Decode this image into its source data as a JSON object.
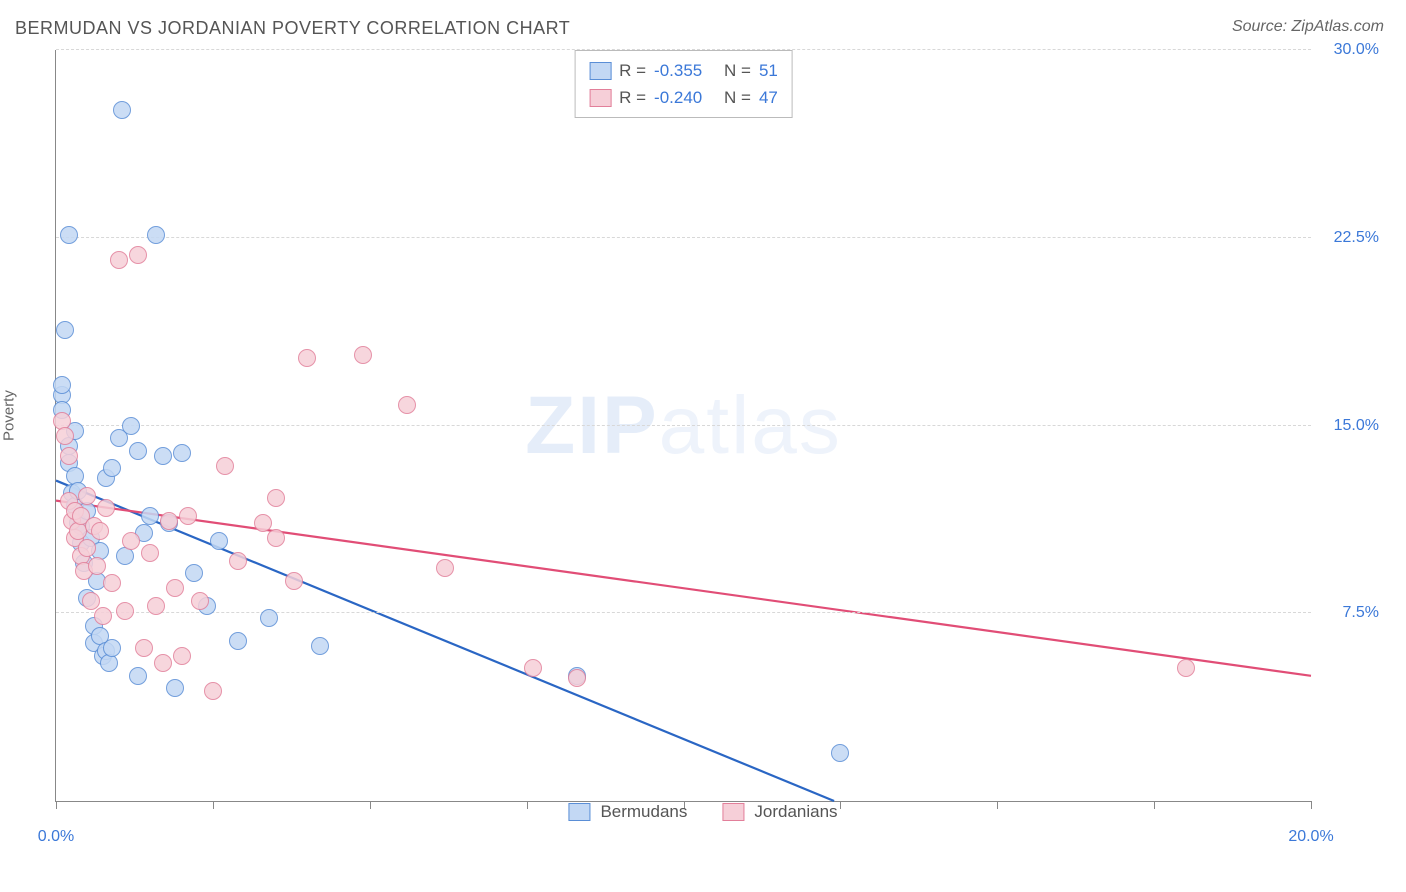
{
  "title": "BERMUDAN VS JORDANIAN POVERTY CORRELATION CHART",
  "source": "Source: ZipAtlas.com",
  "watermark_bold": "ZIP",
  "watermark_rest": "atlas",
  "ylabel": "Poverty",
  "chart": {
    "type": "scatter",
    "xlim": [
      0,
      20
    ],
    "ylim": [
      0,
      30
    ],
    "x_ticks": [
      0,
      2.5,
      5,
      7.5,
      10,
      12.5,
      15,
      17.5,
      20
    ],
    "x_tick_labels": {
      "0": "0.0%",
      "20": "20.0%"
    },
    "y_gridlines": [
      7.5,
      15,
      22.5,
      30
    ],
    "y_tick_labels": {
      "7.5": "7.5%",
      "15": "15.0%",
      "22.5": "22.5%",
      "30": "30.0%"
    },
    "grid_color": "#d8d8d8",
    "axis_color": "#888888",
    "label_color": "#3b78d8",
    "point_radius": 9,
    "series": [
      {
        "name": "Bermudans",
        "fill": "#c3d8f4",
        "stroke": "#5a8ed6",
        "trend_color": "#2a66c4",
        "trend": {
          "x1": 0,
          "y1": 12.8,
          "x2": 12.4,
          "y2": 0
        },
        "legend": {
          "R_label": "R =",
          "R": "-0.355",
          "N_label": "N =",
          "N": "51"
        },
        "points": [
          [
            0.1,
            16.2
          ],
          [
            0.1,
            16.6
          ],
          [
            0.1,
            15.6
          ],
          [
            0.15,
            18.8
          ],
          [
            0.2,
            22.6
          ],
          [
            0.2,
            14.2
          ],
          [
            0.2,
            13.5
          ],
          [
            0.25,
            12.3
          ],
          [
            0.3,
            11.8
          ],
          [
            0.3,
            13.0
          ],
          [
            0.3,
            14.8
          ],
          [
            0.35,
            11.1
          ],
          [
            0.35,
            12.4
          ],
          [
            0.4,
            11.0
          ],
          [
            0.4,
            10.3
          ],
          [
            0.45,
            9.5
          ],
          [
            0.5,
            8.1
          ],
          [
            0.5,
            11.6
          ],
          [
            0.55,
            10.5
          ],
          [
            0.6,
            7.0
          ],
          [
            0.6,
            6.3
          ],
          [
            0.65,
            8.8
          ],
          [
            0.7,
            6.6
          ],
          [
            0.7,
            10.0
          ],
          [
            0.75,
            5.8
          ],
          [
            0.8,
            12.9
          ],
          [
            0.8,
            6.0
          ],
          [
            0.85,
            5.5
          ],
          [
            0.9,
            13.3
          ],
          [
            0.9,
            6.1
          ],
          [
            1.0,
            14.5
          ],
          [
            1.05,
            27.6
          ],
          [
            1.1,
            9.8
          ],
          [
            1.2,
            15.0
          ],
          [
            1.3,
            14.0
          ],
          [
            1.3,
            5.0
          ],
          [
            1.4,
            10.7
          ],
          [
            1.5,
            11.4
          ],
          [
            1.6,
            22.6
          ],
          [
            1.7,
            13.8
          ],
          [
            1.8,
            11.1
          ],
          [
            1.9,
            4.5
          ],
          [
            2.0,
            13.9
          ],
          [
            2.2,
            9.1
          ],
          [
            2.4,
            7.8
          ],
          [
            2.6,
            10.4
          ],
          [
            2.9,
            6.4
          ],
          [
            3.4,
            7.3
          ],
          [
            4.2,
            6.2
          ],
          [
            8.3,
            5.0
          ],
          [
            12.5,
            1.9
          ]
        ]
      },
      {
        "name": "Jordanians",
        "fill": "#f6cfd8",
        "stroke": "#e27f9a",
        "trend_color": "#e14d76",
        "trend": {
          "x1": 0,
          "y1": 12.0,
          "x2": 20,
          "y2": 5.0
        },
        "legend": {
          "R_label": "R =",
          "R": "-0.240",
          "N_label": "N =",
          "N": "47"
        },
        "points": [
          [
            0.1,
            15.2
          ],
          [
            0.15,
            14.6
          ],
          [
            0.2,
            13.8
          ],
          [
            0.2,
            12.0
          ],
          [
            0.25,
            11.2
          ],
          [
            0.3,
            11.6
          ],
          [
            0.3,
            10.5
          ],
          [
            0.35,
            10.8
          ],
          [
            0.4,
            11.4
          ],
          [
            0.4,
            9.8
          ],
          [
            0.45,
            9.2
          ],
          [
            0.5,
            12.2
          ],
          [
            0.5,
            10.1
          ],
          [
            0.55,
            8.0
          ],
          [
            0.6,
            11.0
          ],
          [
            0.65,
            9.4
          ],
          [
            0.7,
            10.8
          ],
          [
            0.75,
            7.4
          ],
          [
            0.8,
            11.7
          ],
          [
            0.9,
            8.7
          ],
          [
            1.0,
            21.6
          ],
          [
            1.1,
            7.6
          ],
          [
            1.2,
            10.4
          ],
          [
            1.3,
            21.8
          ],
          [
            1.4,
            6.1
          ],
          [
            1.5,
            9.9
          ],
          [
            1.6,
            7.8
          ],
          [
            1.7,
            5.5
          ],
          [
            1.8,
            11.2
          ],
          [
            1.9,
            8.5
          ],
          [
            2.0,
            5.8
          ],
          [
            2.1,
            11.4
          ],
          [
            2.3,
            8.0
          ],
          [
            2.5,
            4.4
          ],
          [
            2.7,
            13.4
          ],
          [
            2.9,
            9.6
          ],
          [
            3.3,
            11.1
          ],
          [
            3.5,
            10.5
          ],
          [
            3.5,
            12.1
          ],
          [
            3.8,
            8.8
          ],
          [
            4.0,
            17.7
          ],
          [
            4.9,
            17.8
          ],
          [
            5.6,
            15.8
          ],
          [
            6.2,
            9.3
          ],
          [
            7.6,
            5.3
          ],
          [
            8.3,
            4.9
          ],
          [
            18.0,
            5.3
          ]
        ]
      }
    ]
  },
  "bottom_legend": [
    "Bermudans",
    "Jordanians"
  ]
}
